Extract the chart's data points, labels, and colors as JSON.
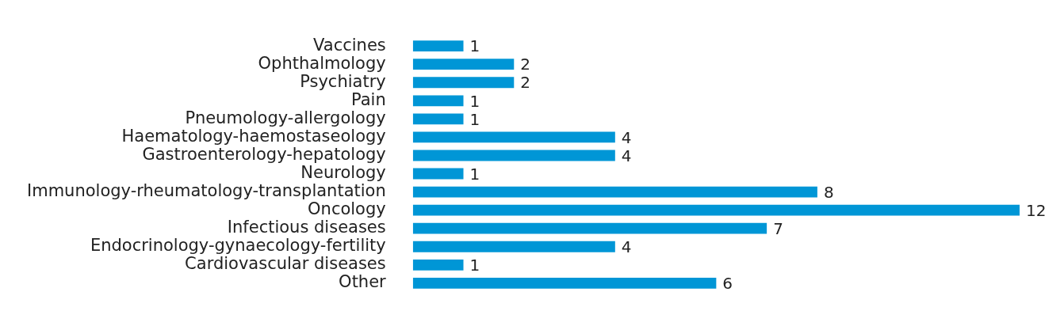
{
  "chart_data": {
    "type": "bar",
    "orientation": "horizontal",
    "categories": [
      "Vaccines",
      "Ophthalmology",
      "Psychiatry",
      "Pain",
      "Pneumology-allergology",
      "Haematology-haemostaseology",
      "Gastroenterology-hepatology",
      "Neurology",
      "Immunology-rheumatology-transplantation",
      "Oncology",
      "Infectious diseases",
      "Endocrinology-gynaecology-fertility",
      "Cardiovascular diseases",
      "Other"
    ],
    "values": [
      1,
      2,
      2,
      1,
      1,
      4,
      4,
      1,
      8,
      12,
      7,
      4,
      1,
      6
    ],
    "color": "#0096d6",
    "data_labels": true,
    "legend": false
  }
}
